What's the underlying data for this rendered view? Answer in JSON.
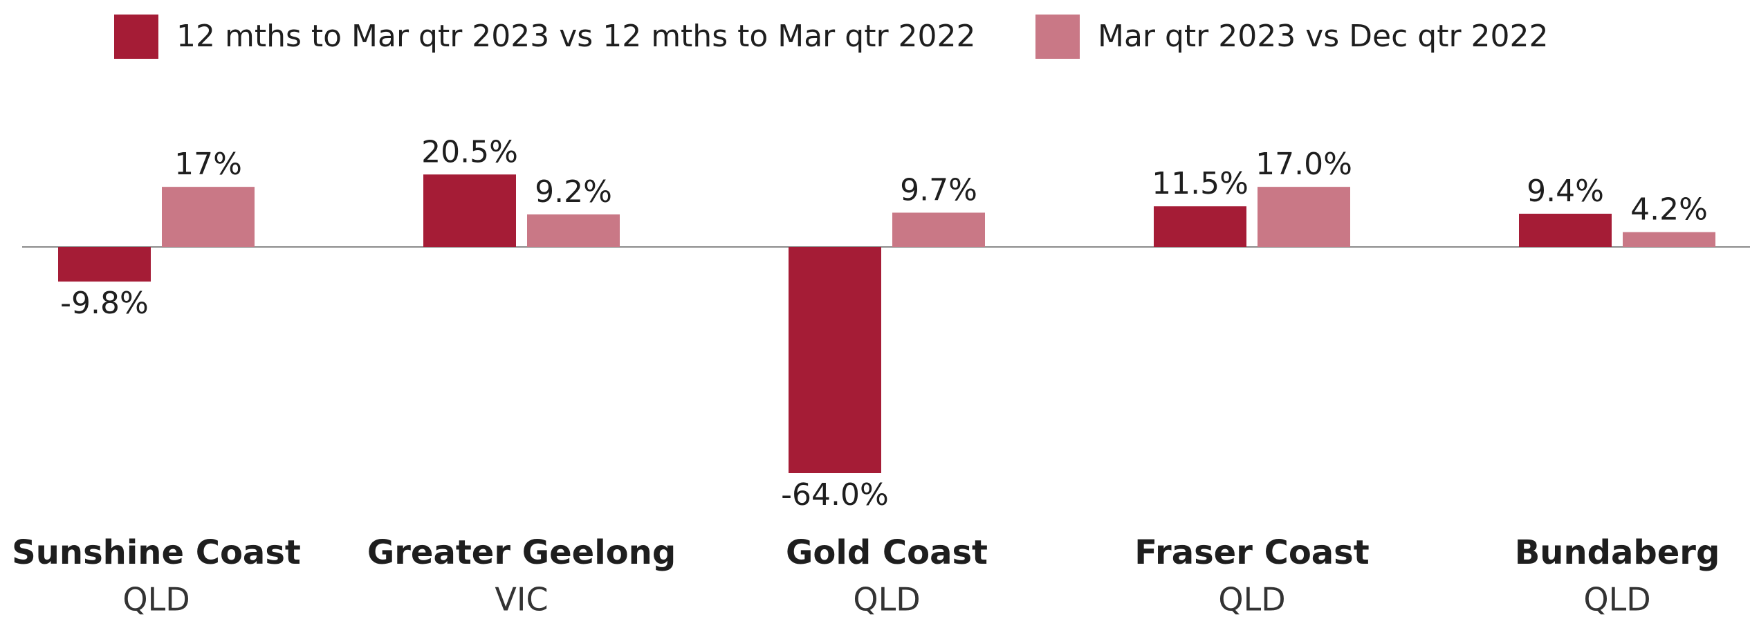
{
  "chart_data": {
    "type": "bar",
    "categories": [
      "Sunshine Coast",
      "Greater Geelong",
      "Gold Coast",
      "Fraser Coast",
      "Bundaberg"
    ],
    "category_states": [
      "QLD",
      "VIC",
      "QLD",
      "QLD",
      "QLD"
    ],
    "series": [
      {
        "name": "12 mths to Mar qtr 2023 vs 12 mths to Mar qtr 2022",
        "color": "#a51c36",
        "values": [
          -9.8,
          20.5,
          -64.0,
          11.5,
          9.4
        ],
        "value_labels": [
          "-9.8%",
          "20.5%",
          "-64.0%",
          "11.5%",
          "9.4%"
        ]
      },
      {
        "name": "Mar qtr 2023 vs Dec qtr 2022",
        "color": "#c97886",
        "values": [
          17,
          9.2,
          9.7,
          17.0,
          4.2
        ],
        "value_labels": [
          "17%",
          "9.2%",
          "9.7%",
          "17.0%",
          "4.2%"
        ]
      }
    ]
  }
}
